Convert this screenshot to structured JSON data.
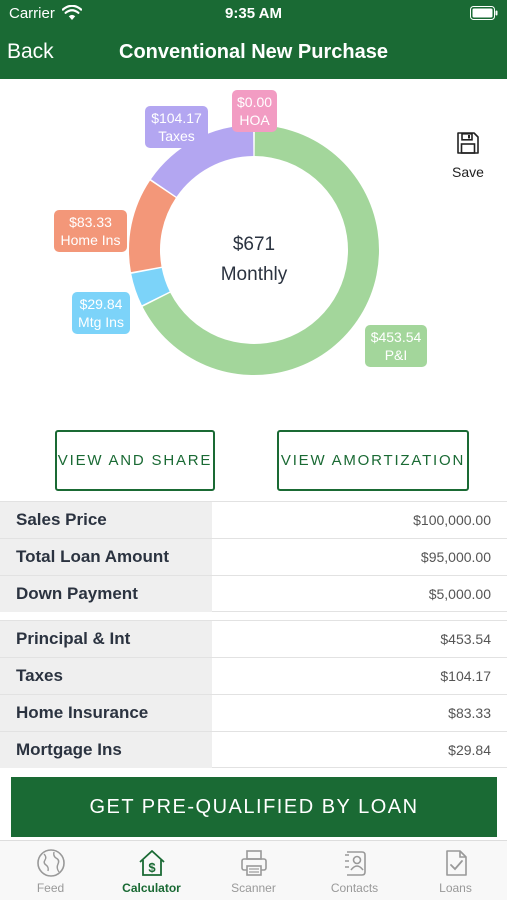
{
  "status_bar": {
    "carrier": "Carrier",
    "time": "9:35 AM"
  },
  "nav": {
    "back_label": "Back",
    "title": "Conventional New Purchase"
  },
  "chart_data": {
    "type": "pie",
    "center_amount": "$671",
    "center_label": "Monthly",
    "slices": [
      {
        "label": "P&I",
        "value": 453.54,
        "value_label": "$453.54",
        "color": "#a3d69b"
      },
      {
        "label": "Mtg Ins",
        "value": 29.84,
        "value_label": "$29.84",
        "color": "#7cd3f9"
      },
      {
        "label": "Home Ins",
        "value": 83.33,
        "value_label": "$83.33",
        "color": "#f39779"
      },
      {
        "label": "Taxes",
        "value": 104.17,
        "value_label": "$104.17",
        "color": "#b3a6f1"
      },
      {
        "label": "HOA",
        "value": 0.0,
        "value_label": "$0.00",
        "color": "#f29cc3"
      }
    ]
  },
  "save": {
    "label": "Save"
  },
  "actions": {
    "share_label": "VIEW AND SHARE",
    "amortization_label": "VIEW AMORTIZATION"
  },
  "loan_summary": [
    {
      "label": "Sales Price",
      "value": "$100,000.00"
    },
    {
      "label": "Total Loan Amount",
      "value": "$95,000.00"
    },
    {
      "label": "Down Payment",
      "value": "$5,000.00"
    }
  ],
  "payment_breakdown": [
    {
      "label": "Principal & Int",
      "value": "$453.54"
    },
    {
      "label": "Taxes",
      "value": "$104.17"
    },
    {
      "label": "Home Insurance",
      "value": "$83.33"
    },
    {
      "label": "Mortgage Ins",
      "value": "$29.84"
    }
  ],
  "cta": {
    "label": "GET PRE-QUALIFIED BY LOAN"
  },
  "tabs": [
    {
      "label": "Feed",
      "icon": "globe-icon",
      "active": false
    },
    {
      "label": "Calculator",
      "icon": "house-dollar-icon",
      "active": true
    },
    {
      "label": "Scanner",
      "icon": "printer-icon",
      "active": false
    },
    {
      "label": "Contacts",
      "icon": "contacts-icon",
      "active": false
    },
    {
      "label": "Loans",
      "icon": "document-check-icon",
      "active": false
    }
  ],
  "colors": {
    "brand": "#1a6a34"
  }
}
